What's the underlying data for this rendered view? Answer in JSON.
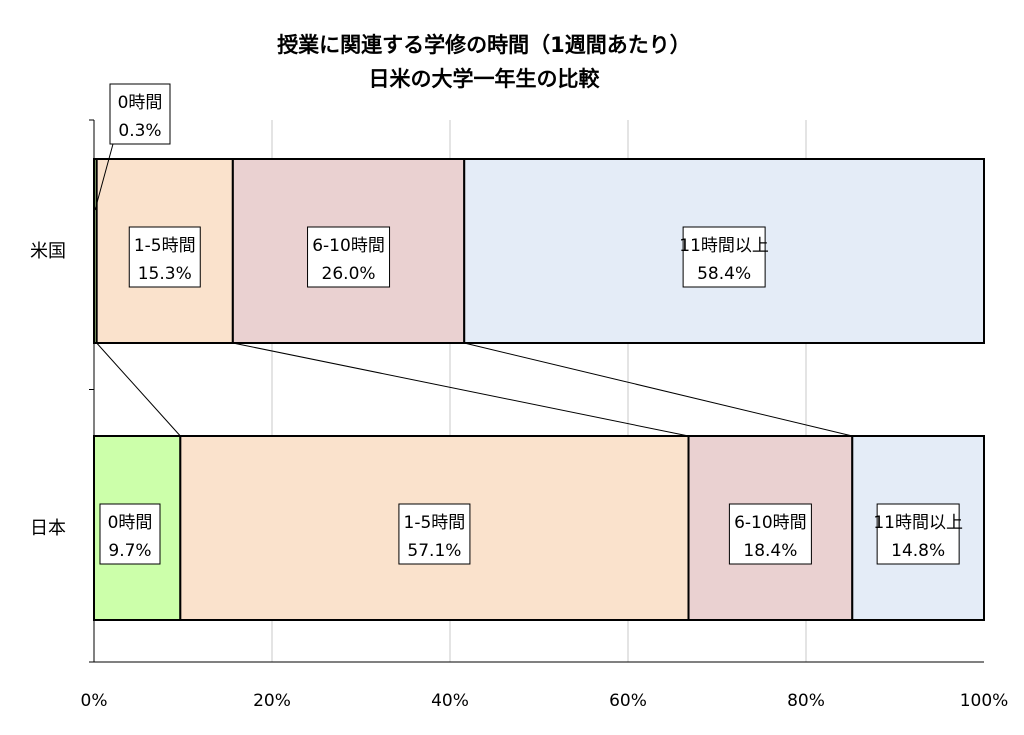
{
  "chart_data": {
    "type": "bar",
    "stacked": true,
    "percent": true,
    "orientation": "horizontal",
    "title": [
      "授業に関連する学修の時間（1週間あたり）",
      "日米の大学一年生の比較"
    ],
    "xlabel": "",
    "ylabel": "",
    "xlim": [
      0,
      100
    ],
    "x_ticks": [
      "0%",
      "20%",
      "40%",
      "60%",
      "80%",
      "100%"
    ],
    "grid": true,
    "categories": [
      "米国",
      "日本"
    ],
    "series": [
      {
        "name": "0時間",
        "color": "#ccffaa",
        "values": [
          0.3,
          9.7
        ]
      },
      {
        "name": "1-5時間",
        "color": "#fae2cc",
        "values": [
          15.3,
          57.1
        ]
      },
      {
        "name": "6-10時間",
        "color": "#ead1d1",
        "values": [
          26.0,
          18.4
        ]
      },
      {
        "name": "11時間以上",
        "color": "#e4ecf7",
        "values": [
          58.4,
          14.8
        ]
      }
    ],
    "data_labels": [
      [
        "0.3%",
        "15.3%",
        "26.0%",
        "58.4%"
      ],
      [
        "9.7%",
        "57.1%",
        "18.4%",
        "14.8%"
      ]
    ]
  }
}
